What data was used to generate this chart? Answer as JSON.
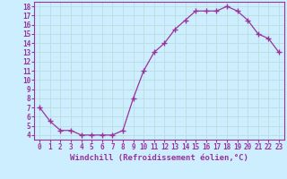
{
  "x": [
    0,
    1,
    2,
    3,
    4,
    5,
    6,
    7,
    8,
    9,
    10,
    11,
    12,
    13,
    14,
    15,
    16,
    17,
    18,
    19,
    20,
    21,
    22,
    23
  ],
  "y": [
    7.0,
    5.5,
    4.5,
    4.5,
    4.0,
    4.0,
    4.0,
    4.0,
    4.5,
    8.0,
    11.0,
    13.0,
    14.0,
    15.5,
    16.5,
    17.5,
    17.5,
    17.5,
    18.0,
    17.5,
    16.5,
    15.0,
    14.5,
    13.0
  ],
  "line_color": "#993399",
  "marker": "+",
  "markersize": 4,
  "linewidth": 0.9,
  "bg_color": "#cceeff",
  "grid_color": "#bbdddd",
  "xlabel": "Windchill (Refroidissement éolien,°C)",
  "xlabel_color": "#993399",
  "tick_color": "#993399",
  "spine_color": "#993399",
  "ylim": [
    3.5,
    18.5
  ],
  "xlim": [
    -0.5,
    23.5
  ],
  "yticks": [
    4,
    5,
    6,
    7,
    8,
    9,
    10,
    11,
    12,
    13,
    14,
    15,
    16,
    17,
    18
  ],
  "xticks": [
    0,
    1,
    2,
    3,
    4,
    5,
    6,
    7,
    8,
    9,
    10,
    11,
    12,
    13,
    14,
    15,
    16,
    17,
    18,
    19,
    20,
    21,
    22,
    23
  ],
  "xlabel_fontsize": 6.5,
  "tick_fontsize": 5.5
}
